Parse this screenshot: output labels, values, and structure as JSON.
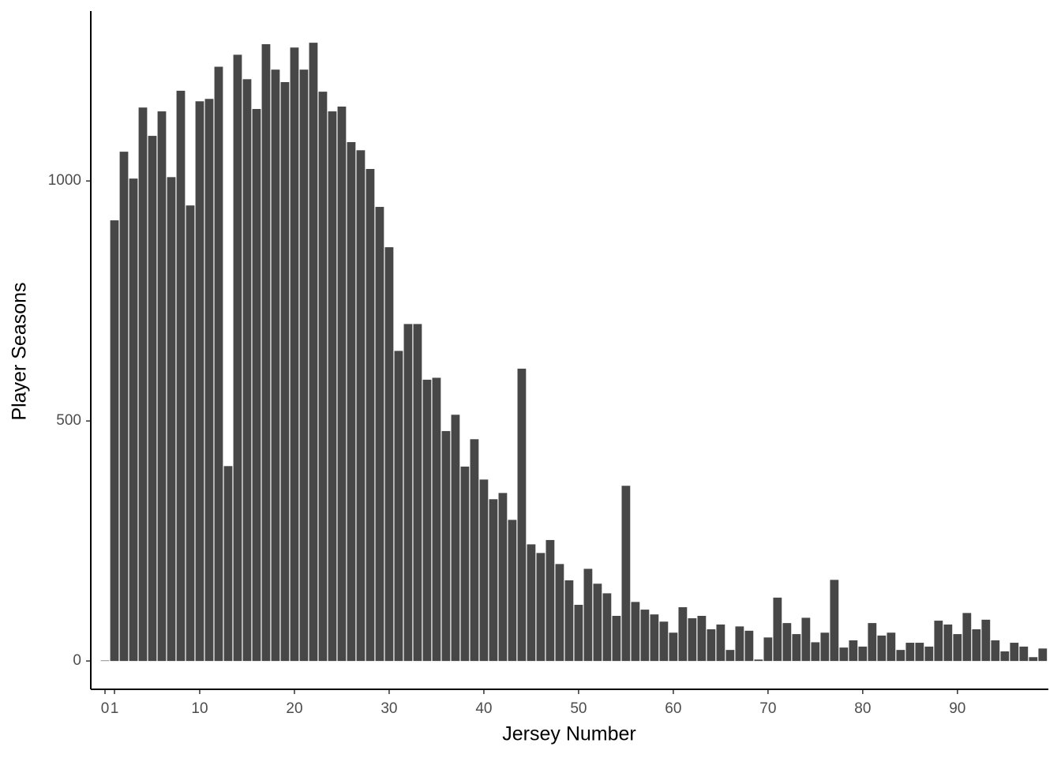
{
  "chart_data": {
    "type": "bar",
    "x_label": "Jersey Number",
    "y_label": "Player Seasons",
    "color": "#474747",
    "x": [
      0,
      1,
      2,
      3,
      4,
      5,
      6,
      7,
      8,
      9,
      10,
      11,
      12,
      13,
      14,
      15,
      16,
      17,
      18,
      19,
      20,
      21,
      22,
      23,
      24,
      25,
      26,
      27,
      28,
      29,
      30,
      31,
      32,
      33,
      34,
      35,
      36,
      37,
      38,
      39,
      40,
      41,
      42,
      43,
      44,
      45,
      46,
      47,
      48,
      49,
      50,
      51,
      52,
      53,
      54,
      55,
      56,
      57,
      58,
      59,
      60,
      61,
      62,
      63,
      64,
      65,
      66,
      67,
      68,
      69,
      70,
      71,
      72,
      73,
      74,
      75,
      76,
      77,
      78,
      79,
      80,
      81,
      82,
      83,
      84,
      85,
      86,
      87,
      88,
      89,
      90,
      91,
      92,
      93,
      94,
      95,
      96,
      97,
      98,
      99
    ],
    "values": [
      1,
      918,
      1061,
      1005,
      1153,
      1094,
      1145,
      1008,
      1188,
      949,
      1166,
      1171,
      1238,
      406,
      1263,
      1212,
      1150,
      1285,
      1232,
      1206,
      1278,
      1232,
      1288,
      1186,
      1145,
      1155,
      1081,
      1064,
      1025,
      946,
      862,
      646,
      702,
      702,
      586,
      590,
      479,
      513,
      405,
      462,
      378,
      337,
      350,
      294,
      609,
      243,
      225,
      252,
      202,
      168,
      117,
      192,
      161,
      141,
      94,
      365,
      123,
      107,
      97,
      82,
      59,
      112,
      89,
      94,
      66,
      76,
      23,
      72,
      63,
      3,
      49,
      132,
      79,
      56,
      90,
      39,
      59,
      169,
      28,
      43,
      30,
      79,
      53,
      59,
      23,
      38,
      38,
      30,
      84,
      76,
      56,
      100,
      66,
      86,
      43,
      20,
      38,
      30,
      8,
      26
    ],
    "xlim": [
      -1.5,
      99.6
    ],
    "xticks": [
      0,
      1,
      10,
      20,
      30,
      40,
      50,
      60,
      70,
      80,
      90
    ],
    "ylim": [
      -59,
      1354
    ],
    "yticks": [
      0,
      500,
      1000
    ],
    "grid": false
  }
}
